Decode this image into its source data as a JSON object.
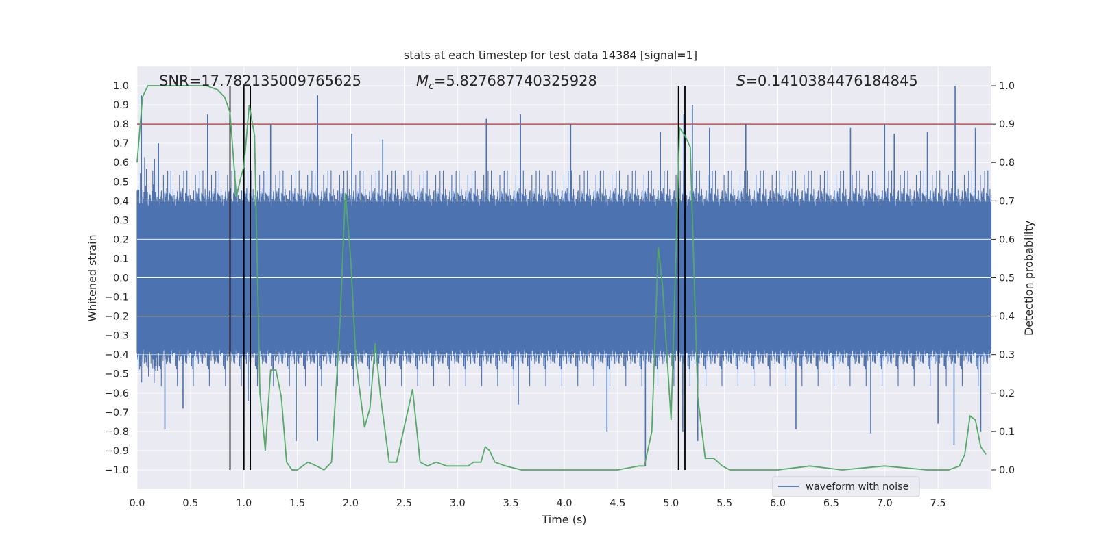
{
  "chart_data": {
    "type": "line",
    "title": "stats at each timestep for test data 14384 [signal=1]",
    "xlabel": "Time (s)",
    "ylabel": "Whitened strain",
    "y2label": "Detection probability",
    "xlim": [
      0.0,
      8.0
    ],
    "ylim": [
      -1.1,
      1.1
    ],
    "y2lim": [
      -0.05,
      1.05
    ],
    "xticks": [
      "0.0",
      "0.5",
      "1.0",
      "1.5",
      "2.0",
      "2.5",
      "3.0",
      "3.5",
      "4.0",
      "4.5",
      "5.0",
      "5.5",
      "6.0",
      "6.5",
      "7.0",
      "7.5"
    ],
    "yticks": [
      "1.0",
      "0.9",
      "0.8",
      "0.7",
      "0.6",
      "0.5",
      "0.4",
      "0.3",
      "0.2",
      "0.1",
      "0.0",
      "−0.1",
      "−0.2",
      "−0.3",
      "−0.4",
      "−0.5",
      "−0.6",
      "−0.7",
      "−0.8",
      "−0.9",
      "−1.0"
    ],
    "y2ticks": [
      "1.0",
      "0.9",
      "0.8",
      "0.7",
      "0.6",
      "0.5",
      "0.4",
      "0.3",
      "0.2",
      "0.1",
      "0.0"
    ],
    "grid": true,
    "legend": {
      "position": "lower-right",
      "entries": [
        "waveform with noise"
      ]
    },
    "annotations": {
      "snr": "SNR=17.782135009765625",
      "mc": "=5.827687740325928",
      "mc_symbol": "M",
      "mc_sub": "c",
      "s": "=0.1410384476184845",
      "s_symbol": "S"
    },
    "threshold": {
      "y": 0.8,
      "color": "#c44e52"
    },
    "vertical_lines": [
      0.87,
      1.0,
      1.06,
      5.07,
      5.13
    ],
    "colors": {
      "waveform": "#4c72b0",
      "probability": "#55a868",
      "threshold": "#c44e52",
      "vlines": "#000000",
      "background": "#eaeaf2",
      "grid": "#ffffff"
    },
    "series": [
      {
        "name": "waveform with noise",
        "kind": "noise-envelope",
        "core_amplitude": 0.4,
        "peaks": [
          [
            0.04,
            0.95
          ],
          [
            0.2,
            0.7
          ],
          [
            0.66,
            0.85
          ],
          [
            1.25,
            0.8
          ],
          [
            1.69,
            0.95
          ],
          [
            2.01,
            0.75
          ],
          [
            2.3,
            0.72
          ],
          [
            3.27,
            0.83
          ],
          [
            3.59,
            0.85
          ],
          [
            4.06,
            0.8
          ],
          [
            4.9,
            0.76
          ],
          [
            5.12,
            0.85
          ],
          [
            5.2,
            0.9
          ],
          [
            5.36,
            0.78
          ],
          [
            5.7,
            0.8
          ],
          [
            6.68,
            0.78
          ],
          [
            7.0,
            0.8
          ],
          [
            7.09,
            0.75
          ],
          [
            7.4,
            0.76
          ],
          [
            7.66,
            1.0
          ],
          [
            7.85,
            0.78
          ],
          [
            0.26,
            -0.79
          ],
          [
            0.43,
            -0.68
          ],
          [
            1.04,
            -0.64
          ],
          [
            1.49,
            -0.85
          ],
          [
            1.69,
            -0.85
          ],
          [
            3.57,
            -0.66
          ],
          [
            4.4,
            -0.8
          ],
          [
            4.76,
            -0.98
          ],
          [
            5.11,
            -0.8
          ],
          [
            5.25,
            -0.85
          ],
          [
            6.17,
            -0.79
          ],
          [
            6.87,
            -0.81
          ],
          [
            7.5,
            -0.76
          ],
          [
            7.65,
            -0.87
          ],
          [
            7.9,
            -0.8
          ]
        ]
      },
      {
        "name": "Detection probability",
        "x": [
          0.0,
          0.05,
          0.1,
          0.2,
          0.3,
          0.4,
          0.5,
          0.6,
          0.65,
          0.75,
          0.82,
          0.87,
          0.93,
          0.97,
          1.0,
          1.05,
          1.1,
          1.15,
          1.2,
          1.25,
          1.3,
          1.35,
          1.4,
          1.45,
          1.5,
          1.55,
          1.6,
          1.68,
          1.75,
          1.82,
          1.9,
          1.95,
          2.0,
          2.05,
          2.13,
          2.18,
          2.23,
          2.28,
          2.36,
          2.43,
          2.5,
          2.58,
          2.65,
          2.72,
          2.8,
          2.9,
          3.0,
          3.1,
          3.15,
          3.22,
          3.26,
          3.3,
          3.35,
          3.45,
          3.6,
          4.0,
          4.5,
          4.7,
          4.75,
          4.82,
          4.88,
          4.92,
          5.0,
          5.08,
          5.13,
          5.18,
          5.25,
          5.32,
          5.4,
          5.48,
          5.55,
          5.6,
          6.0,
          6.3,
          6.6,
          7.0,
          7.4,
          7.6,
          7.7,
          7.75,
          7.8,
          7.85,
          7.9,
          7.95
        ],
        "y": [
          0.8,
          0.97,
          1.0,
          1.0,
          1.0,
          1.0,
          1.0,
          1.0,
          1.0,
          0.99,
          0.97,
          0.93,
          0.71,
          0.76,
          0.79,
          0.95,
          0.87,
          0.2,
          0.05,
          0.26,
          0.26,
          0.19,
          0.02,
          0.0,
          0.0,
          0.01,
          0.02,
          0.01,
          0.0,
          0.02,
          0.38,
          0.72,
          0.55,
          0.28,
          0.11,
          0.16,
          0.33,
          0.19,
          0.02,
          0.02,
          0.11,
          0.21,
          0.02,
          0.01,
          0.02,
          0.01,
          0.01,
          0.01,
          0.02,
          0.02,
          0.06,
          0.05,
          0.02,
          0.01,
          0.0,
          0.0,
          0.0,
          0.01,
          0.01,
          0.1,
          0.58,
          0.48,
          0.13,
          0.89,
          0.87,
          0.84,
          0.19,
          0.03,
          0.03,
          0.01,
          0.0,
          0.0,
          0.0,
          0.01,
          0.0,
          0.01,
          0.0,
          0.0,
          0.01,
          0.04,
          0.14,
          0.13,
          0.06,
          0.04
        ]
      }
    ]
  }
}
